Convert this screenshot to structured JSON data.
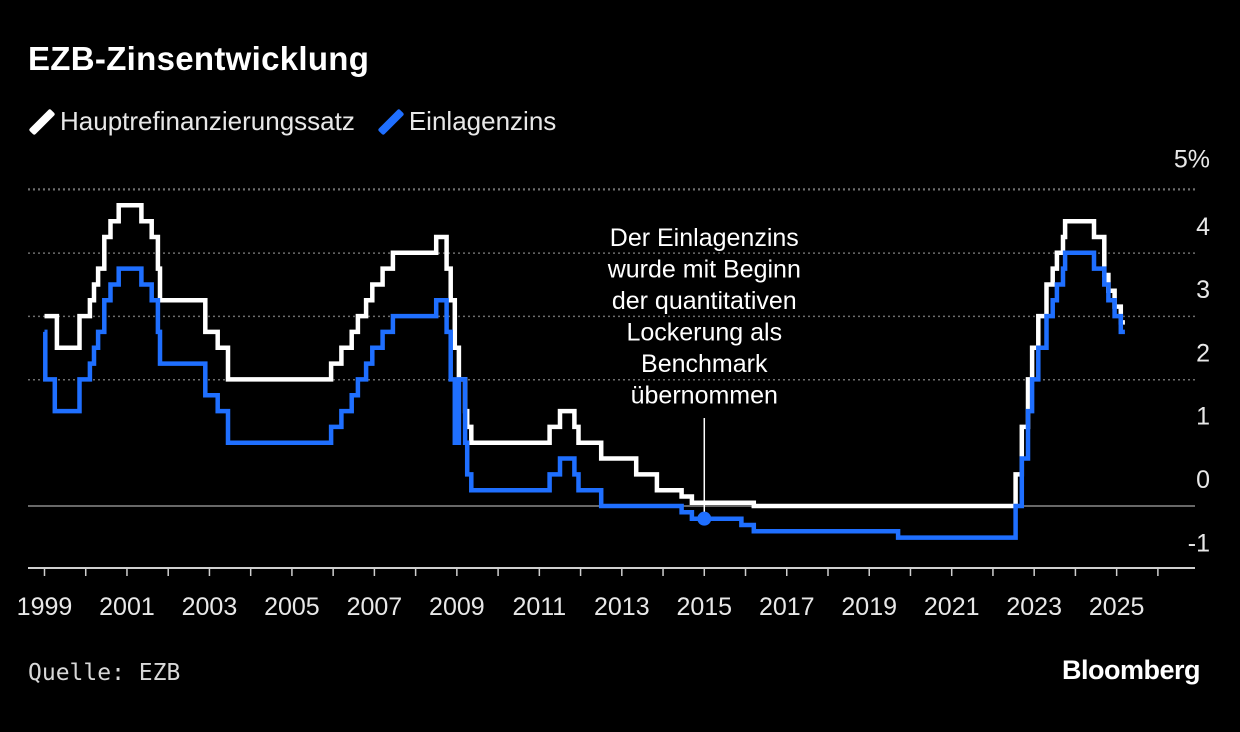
{
  "title": "EZB-Zinsentwicklung",
  "legend": [
    {
      "label": "Hauptrefinanzierungssatz",
      "color": "#ffffff"
    },
    {
      "label": "Einlagenzins",
      "color": "#1f6fff"
    }
  ],
  "source": "Quelle: EZB",
  "brand": "Bloomberg",
  "chart_data": {
    "type": "line",
    "step": true,
    "title": "EZB-Zinsentwicklung",
    "xlabel": "",
    "ylabel": "",
    "xlim": [
      1998.6,
      2026.9
    ],
    "ylim": [
      -1,
      5
    ],
    "unit_label": "5%",
    "x_ticks": [
      "1999",
      "2001",
      "2003",
      "2005",
      "2007",
      "2009",
      "2011",
      "2013",
      "2015",
      "2017",
      "2019",
      "2021",
      "2023",
      "2025"
    ],
    "y_ticks": [
      "5%",
      "4",
      "3",
      "2",
      "1",
      "0",
      "-1"
    ],
    "grid": "horizontal dotted",
    "zero_line": true,
    "legend_position": "top-left",
    "series": [
      {
        "name": "Hauptrefinanzierungssatz",
        "color": "#ffffff",
        "points": [
          [
            1999.0,
            3.0
          ],
          [
            1999.3,
            2.5
          ],
          [
            1999.85,
            3.0
          ],
          [
            2000.1,
            3.25
          ],
          [
            2000.2,
            3.5
          ],
          [
            2000.3,
            3.75
          ],
          [
            2000.45,
            4.25
          ],
          [
            2000.6,
            4.5
          ],
          [
            2000.8,
            4.75
          ],
          [
            2001.35,
            4.5
          ],
          [
            2001.6,
            4.25
          ],
          [
            2001.75,
            3.75
          ],
          [
            2001.8,
            3.25
          ],
          [
            2002.9,
            2.75
          ],
          [
            2003.2,
            2.5
          ],
          [
            2003.45,
            2.0
          ],
          [
            2005.95,
            2.25
          ],
          [
            2006.2,
            2.5
          ],
          [
            2006.45,
            2.75
          ],
          [
            2006.6,
            3.0
          ],
          [
            2006.8,
            3.25
          ],
          [
            2006.95,
            3.5
          ],
          [
            2007.2,
            3.75
          ],
          [
            2007.45,
            4.0
          ],
          [
            2008.5,
            4.25
          ],
          [
            2008.75,
            3.75
          ],
          [
            2008.85,
            3.25
          ],
          [
            2008.95,
            2.5
          ],
          [
            2009.05,
            2.0
          ],
          [
            2009.2,
            1.5
          ],
          [
            2009.25,
            1.25
          ],
          [
            2009.35,
            1.0
          ],
          [
            2011.25,
            1.25
          ],
          [
            2011.5,
            1.5
          ],
          [
            2011.85,
            1.25
          ],
          [
            2011.95,
            1.0
          ],
          [
            2012.5,
            0.75
          ],
          [
            2013.35,
            0.5
          ],
          [
            2013.85,
            0.25
          ],
          [
            2014.45,
            0.15
          ],
          [
            2014.7,
            0.05
          ],
          [
            2016.2,
            0.0
          ],
          [
            2022.55,
            0.5
          ],
          [
            2022.7,
            1.25
          ],
          [
            2022.85,
            2.0
          ],
          [
            2022.95,
            2.5
          ],
          [
            2023.1,
            3.0
          ],
          [
            2023.3,
            3.5
          ],
          [
            2023.45,
            3.75
          ],
          [
            2023.55,
            4.0
          ],
          [
            2023.7,
            4.25
          ],
          [
            2023.75,
            4.5
          ],
          [
            2024.45,
            4.25
          ],
          [
            2024.7,
            3.65
          ],
          [
            2024.8,
            3.4
          ],
          [
            2024.95,
            3.15
          ],
          [
            2025.1,
            2.9
          ],
          [
            2025.2,
            2.9
          ]
        ]
      },
      {
        "name": "Einlagenzins",
        "color": "#1f6fff",
        "points": [
          [
            1999.0,
            2.75
          ],
          [
            1999.02,
            2.0
          ],
          [
            1999.25,
            1.5
          ],
          [
            1999.85,
            2.0
          ],
          [
            2000.1,
            2.25
          ],
          [
            2000.2,
            2.5
          ],
          [
            2000.3,
            2.75
          ],
          [
            2000.45,
            3.25
          ],
          [
            2000.6,
            3.5
          ],
          [
            2000.8,
            3.75
          ],
          [
            2001.35,
            3.5
          ],
          [
            2001.6,
            3.25
          ],
          [
            2001.75,
            2.75
          ],
          [
            2001.8,
            2.25
          ],
          [
            2002.9,
            1.75
          ],
          [
            2003.2,
            1.5
          ],
          [
            2003.45,
            1.0
          ],
          [
            2005.95,
            1.25
          ],
          [
            2006.2,
            1.5
          ],
          [
            2006.45,
            1.75
          ],
          [
            2006.6,
            2.0
          ],
          [
            2006.8,
            2.25
          ],
          [
            2006.95,
            2.5
          ],
          [
            2007.2,
            2.75
          ],
          [
            2007.45,
            3.0
          ],
          [
            2008.5,
            3.25
          ],
          [
            2008.75,
            2.75
          ],
          [
            2008.85,
            2.0
          ],
          [
            2008.95,
            1.0
          ],
          [
            2009.05,
            2.0
          ],
          [
            2009.2,
            1.0
          ],
          [
            2009.25,
            0.5
          ],
          [
            2009.35,
            0.25
          ],
          [
            2011.25,
            0.5
          ],
          [
            2011.5,
            0.75
          ],
          [
            2011.85,
            0.5
          ],
          [
            2011.95,
            0.25
          ],
          [
            2012.5,
            0.0
          ],
          [
            2014.45,
            -0.1
          ],
          [
            2014.7,
            -0.2
          ],
          [
            2015.9,
            -0.3
          ],
          [
            2016.2,
            -0.4
          ],
          [
            2019.7,
            -0.5
          ],
          [
            2022.55,
            0.0
          ],
          [
            2022.7,
            0.75
          ],
          [
            2022.85,
            1.5
          ],
          [
            2022.95,
            2.0
          ],
          [
            2023.1,
            2.5
          ],
          [
            2023.3,
            3.0
          ],
          [
            2023.45,
            3.25
          ],
          [
            2023.55,
            3.5
          ],
          [
            2023.7,
            3.75
          ],
          [
            2023.75,
            4.0
          ],
          [
            2024.45,
            3.75
          ],
          [
            2024.7,
            3.5
          ],
          [
            2024.8,
            3.25
          ],
          [
            2024.95,
            3.0
          ],
          [
            2025.1,
            2.75
          ],
          [
            2025.2,
            2.75
          ]
        ]
      }
    ],
    "annotation": {
      "lines": [
        "Der Einlagenzins",
        "wurde mit Beginn",
        "der quantitativen",
        "Lockerung als",
        "Benchmark",
        "übernommen"
      ],
      "x": 2015.0,
      "y": -0.2
    }
  }
}
